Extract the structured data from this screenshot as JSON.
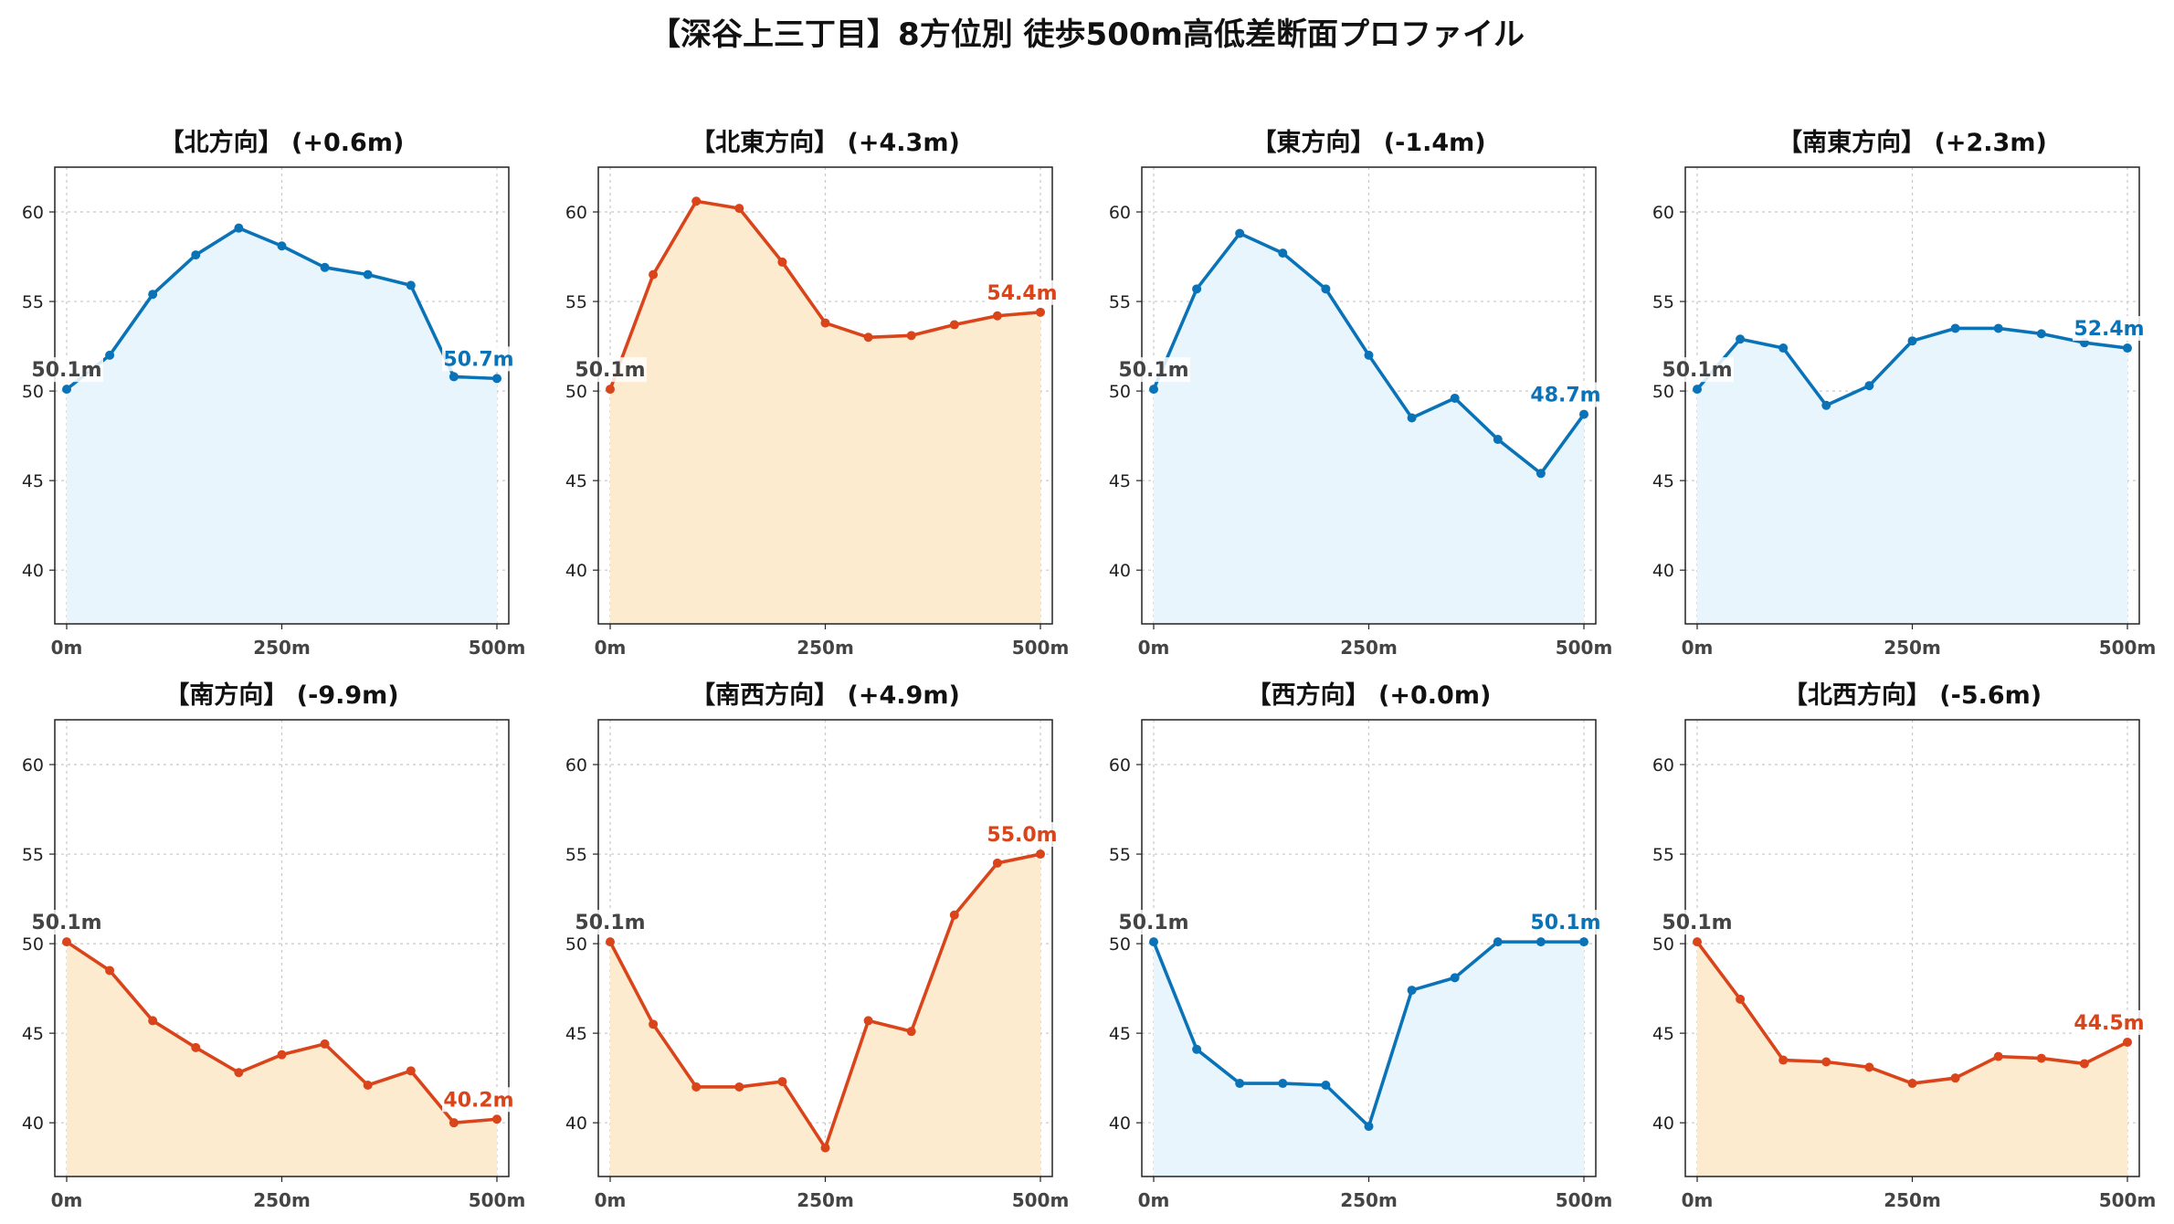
{
  "title": "【深谷上三丁目】8方位別 徒歩500m高低差断面プロファイル",
  "colors": {
    "up_line": "#d9441a",
    "up_fill": "#fdebd0",
    "down_line": "#0a73b8",
    "down_fill": "#e9f5fc",
    "start_label": "#444444",
    "grid": "#c8c8c8"
  },
  "chart_data": [
    {
      "type": "area",
      "title": "【北方向】 (+0.6m)",
      "color": "blue",
      "ylim": [
        37,
        62.5
      ],
      "yticks": [
        40,
        45,
        50,
        55,
        60
      ],
      "xticks": [
        "0m",
        "250m",
        "500m"
      ],
      "grid": true,
      "x": [
        0,
        50,
        100,
        150,
        200,
        250,
        300,
        350,
        400,
        450,
        500
      ],
      "y": [
        50.1,
        52.0,
        55.4,
        57.6,
        59.1,
        58.1,
        56.9,
        56.5,
        55.9,
        50.8,
        50.7
      ],
      "start_label": "50.1m",
      "end_label": "50.7m"
    },
    {
      "type": "area",
      "title": "【北東方向】 (+4.3m)",
      "color": "orange",
      "ylim": [
        37,
        62.5
      ],
      "yticks": [
        40,
        45,
        50,
        55,
        60
      ],
      "xticks": [
        "0m",
        "250m",
        "500m"
      ],
      "grid": true,
      "x": [
        0,
        50,
        100,
        150,
        200,
        250,
        300,
        350,
        400,
        450,
        500
      ],
      "y": [
        50.1,
        56.5,
        60.6,
        60.2,
        57.2,
        53.8,
        53.0,
        53.1,
        53.7,
        54.2,
        54.4
      ],
      "start_label": "50.1m",
      "end_label": "54.4m"
    },
    {
      "type": "area",
      "title": "【東方向】 (-1.4m)",
      "color": "blue",
      "ylim": [
        37,
        62.5
      ],
      "yticks": [
        40,
        45,
        50,
        55,
        60
      ],
      "xticks": [
        "0m",
        "250m",
        "500m"
      ],
      "grid": true,
      "x": [
        0,
        50,
        100,
        150,
        200,
        250,
        300,
        350,
        400,
        450,
        500
      ],
      "y": [
        50.1,
        55.7,
        58.8,
        57.7,
        55.7,
        52.0,
        48.5,
        49.6,
        47.3,
        45.4,
        48.7
      ],
      "start_label": "50.1m",
      "end_label": "48.7m"
    },
    {
      "type": "area",
      "title": "【南東方向】 (+2.3m)",
      "color": "blue",
      "ylim": [
        37,
        62.5
      ],
      "yticks": [
        40,
        45,
        50,
        55,
        60
      ],
      "xticks": [
        "0m",
        "250m",
        "500m"
      ],
      "grid": true,
      "x": [
        0,
        50,
        100,
        150,
        200,
        250,
        300,
        350,
        400,
        450,
        500
      ],
      "y": [
        50.1,
        52.9,
        52.4,
        49.2,
        50.3,
        52.8,
        53.5,
        53.5,
        53.2,
        52.7,
        52.4
      ],
      "start_label": "50.1m",
      "end_label": "52.4m"
    },
    {
      "type": "area",
      "title": "【南方向】 (-9.9m)",
      "color": "orange",
      "ylim": [
        37,
        62.5
      ],
      "yticks": [
        40,
        45,
        50,
        55,
        60
      ],
      "xticks": [
        "0m",
        "250m",
        "500m"
      ],
      "grid": true,
      "x": [
        0,
        50,
        100,
        150,
        200,
        250,
        300,
        350,
        400,
        450,
        500
      ],
      "y": [
        50.1,
        48.5,
        45.7,
        44.2,
        42.8,
        43.8,
        44.4,
        42.1,
        42.9,
        40.0,
        40.2
      ],
      "start_label": "50.1m",
      "end_label": "40.2m"
    },
    {
      "type": "area",
      "title": "【南西方向】 (+4.9m)",
      "color": "orange",
      "ylim": [
        37,
        62.5
      ],
      "yticks": [
        40,
        45,
        50,
        55,
        60
      ],
      "xticks": [
        "0m",
        "250m",
        "500m"
      ],
      "grid": true,
      "x": [
        0,
        50,
        100,
        150,
        200,
        250,
        300,
        350,
        400,
        450,
        500
      ],
      "y": [
        50.1,
        45.5,
        42.0,
        42.0,
        42.3,
        38.6,
        45.7,
        45.1,
        51.6,
        54.5,
        55.0
      ],
      "start_label": "50.1m",
      "end_label": "55.0m"
    },
    {
      "type": "area",
      "title": "【西方向】 (+0.0m)",
      "color": "blue",
      "ylim": [
        37,
        62.5
      ],
      "yticks": [
        40,
        45,
        50,
        55,
        60
      ],
      "xticks": [
        "0m",
        "250m",
        "500m"
      ],
      "grid": true,
      "x": [
        0,
        50,
        100,
        150,
        200,
        250,
        300,
        350,
        400,
        450,
        500
      ],
      "y": [
        50.1,
        44.1,
        42.2,
        42.2,
        42.1,
        39.8,
        47.4,
        48.1,
        50.1,
        50.1,
        50.1
      ],
      "start_label": "50.1m",
      "end_label": "50.1m"
    },
    {
      "type": "area",
      "title": "【北西方向】 (-5.6m)",
      "color": "orange",
      "ylim": [
        37,
        62.5
      ],
      "yticks": [
        40,
        45,
        50,
        55,
        60
      ],
      "xticks": [
        "0m",
        "250m",
        "500m"
      ],
      "grid": true,
      "x": [
        0,
        50,
        100,
        150,
        200,
        250,
        300,
        350,
        400,
        450,
        500
      ],
      "y": [
        50.1,
        46.9,
        43.5,
        43.4,
        43.1,
        42.2,
        42.5,
        43.7,
        43.6,
        43.3,
        44.5
      ],
      "start_label": "50.1m",
      "end_label": "44.5m"
    }
  ]
}
